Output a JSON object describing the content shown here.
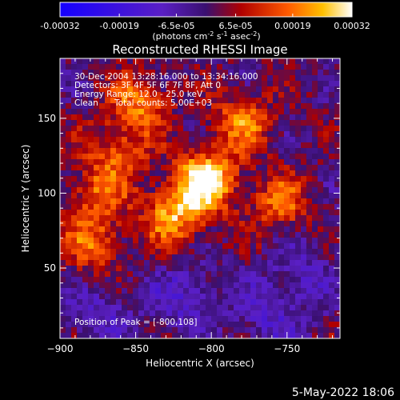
{
  "colorbar": {
    "ticks": [
      "-0.00032",
      "-0.00019",
      "-6.5e-05",
      "6.5e-05",
      "0.00019",
      "0.00032"
    ],
    "unit_base": "(photons cm",
    "unit_exp1": "-2",
    "unit_mid": " s",
    "unit_exp2": "-1",
    "unit_mid2": " asec",
    "unit_exp3": "-2",
    "unit_close": ")"
  },
  "title": "Reconstructed RHESSI Image",
  "annotations": {
    "time_range": "30-Dec-2004 13:28:16.000 to 13:34:16.000",
    "detectors": "Detectors: 3F 4F 5F 6F 7F 8F, Att 0",
    "energy_range": "Energy Range: 12.0 - 25.0 keV",
    "method": "Clean",
    "total_counts": "Total counts: 5.00E+03",
    "peak_position": "Position of Peak = [-800,108]"
  },
  "footer": {
    "timestamp": "5-May-2022 18:06"
  },
  "chart_data": {
    "type": "heatmap",
    "title": "Reconstructed RHESSI Image",
    "xlabel": "Heliocentric X (arcsec)",
    "ylabel": "Heliocentric Y (arcsec)",
    "xlim": [
      -900,
      -715
    ],
    "ylim": [
      3,
      190
    ],
    "x_ticks": [
      -900,
      -850,
      -800,
      -750
    ],
    "x_tick_labels": [
      "−900",
      "−850",
      "−800",
      "−750"
    ],
    "y_ticks": [
      50,
      100,
      150
    ],
    "y_tick_labels": [
      "50",
      "100",
      "150"
    ],
    "value_range": [
      -0.00032,
      0.00032
    ],
    "colormap": "RHESSI red-temperature (blue=negative, violet=zero, red/yellow/white=positive)",
    "peak": [
      -800,
      108
    ],
    "bright_regions": [
      {
        "x": -804,
        "y": 108,
        "peak": 0.00032
      },
      {
        "x": -825,
        "y": 85,
        "peak": 0.00022
      },
      {
        "x": -848,
        "y": 160,
        "peak": 0.00018
      },
      {
        "x": -780,
        "y": 147,
        "peak": 0.00018
      },
      {
        "x": -875,
        "y": 100,
        "peak": 0.00015
      },
      {
        "x": -878,
        "y": 66,
        "peak": 0.00016
      },
      {
        "x": -755,
        "y": 93,
        "peak": 0.00016
      },
      {
        "x": -862,
        "y": 128,
        "peak": 0.00014
      }
    ],
    "dim_regions": [
      {
        "x": -815,
        "y": 30,
        "value": -0.00012
      },
      {
        "x": -760,
        "y": 18,
        "value": -0.0001
      },
      {
        "x": -740,
        "y": 48,
        "value": -8e-05
      },
      {
        "x": -870,
        "y": 20,
        "value": -0.0001
      }
    ]
  }
}
